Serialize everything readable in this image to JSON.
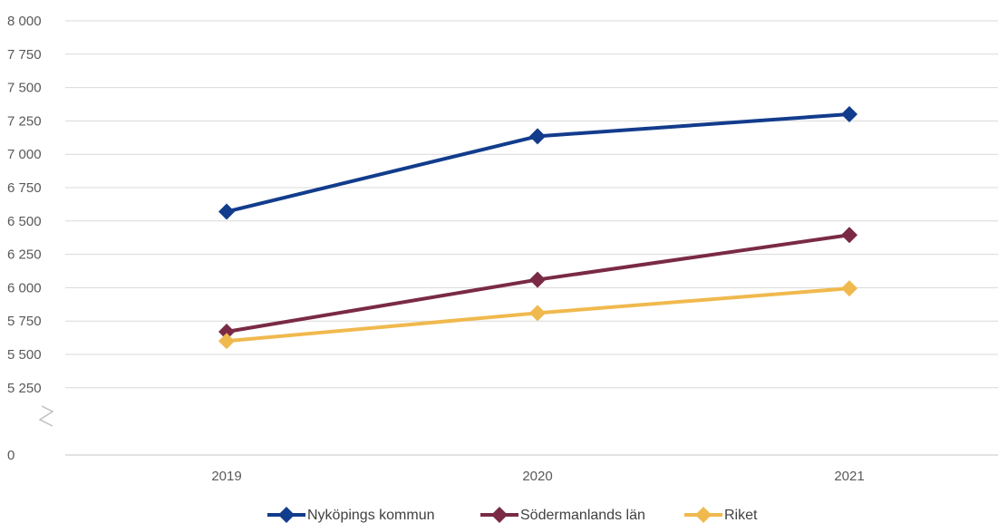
{
  "chart_data": {
    "type": "line",
    "categories": [
      "2019",
      "2020",
      "2021"
    ],
    "series": [
      {
        "name": "Nyköpings kommun",
        "color": "#123c8c",
        "values": [
          6570,
          7135,
          7300
        ]
      },
      {
        "name": "Södermanlands län",
        "color": "#7a2a45",
        "values": [
          5670,
          6060,
          6395
        ]
      },
      {
        "name": "Riket",
        "color": "#f0b94e",
        "values": [
          5600,
          5810,
          5995
        ]
      }
    ],
    "y_ticks": [
      "8 000",
      "7 750",
      "7 500",
      "7 250",
      "7 000",
      "6 750",
      "6 500",
      "6 250",
      "6 000",
      "5 750",
      "5 500",
      "5 250",
      "0"
    ],
    "ylim": [
      5250,
      8000
    ],
    "axis_break": true,
    "title": "",
    "xlabel": "",
    "ylabel": "",
    "grid": true,
    "legend_position": "bottom",
    "colors": {
      "grid": "#d9d9d9",
      "tick_text": "#595959",
      "axis_break": "#bfbfbf"
    }
  }
}
